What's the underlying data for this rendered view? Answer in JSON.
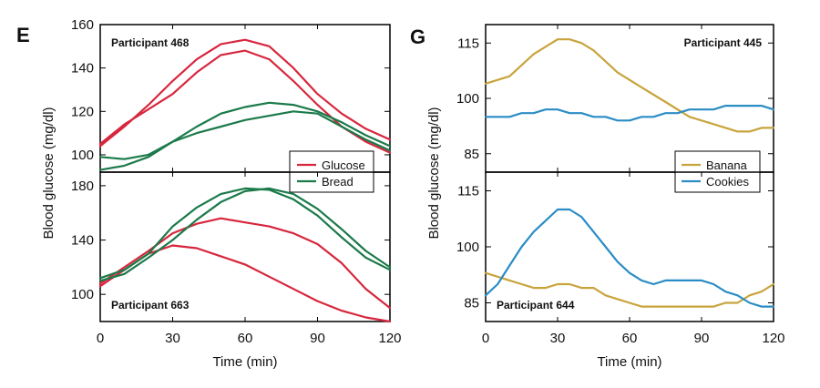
{
  "colors": {
    "glucose": "#d7263d",
    "bread": "#1b7a4a",
    "banana": "#c8a43c",
    "cookies": "#2a8dc5",
    "frame": "#000000"
  },
  "chart_data": [
    {
      "panel": "E",
      "type": "line",
      "xlabel": "Time (min)",
      "ylabel": "Blood glucose (mg/dl)",
      "xlim": [
        0,
        120
      ],
      "xticks": [
        "0",
        "30",
        "60",
        "90",
        "120"
      ],
      "legend": [
        {
          "label": "Glucose",
          "color_key": "glucose"
        },
        {
          "label": "Bread",
          "color_key": "bread"
        }
      ],
      "legend_position": "bottom-right of top subplot",
      "subplots": [
        {
          "participant": "Participant 468",
          "label_position": "top-left",
          "ylim": [
            92,
            160
          ],
          "yticks": [
            100,
            120,
            140,
            160
          ],
          "series": [
            {
              "food": "Glucose",
              "color_key": "glucose",
              "x": [
                0,
                10,
                20,
                30,
                40,
                50,
                60,
                70,
                80,
                90,
                100,
                110,
                120
              ],
              "y": [
                104,
                113,
                123,
                134,
                144,
                151,
                153,
                150,
                140,
                128,
                119,
                112,
                107
              ]
            },
            {
              "food": "Glucose",
              "color_key": "glucose",
              "x": [
                0,
                10,
                20,
                30,
                40,
                50,
                60,
                70,
                80,
                90,
                100,
                110,
                120
              ],
              "y": [
                105,
                114,
                121,
                128,
                138,
                146,
                148,
                144,
                134,
                123,
                113,
                106,
                101
              ]
            },
            {
              "food": "Bread",
              "color_key": "bread",
              "x": [
                0,
                10,
                20,
                30,
                40,
                50,
                60,
                70,
                80,
                90,
                100,
                110,
                120
              ],
              "y": [
                99,
                98,
                100,
                106,
                113,
                119,
                122,
                124,
                123,
                120,
                115,
                109,
                104
              ]
            },
            {
              "food": "Bread",
              "color_key": "bread",
              "x": [
                0,
                10,
                20,
                30,
                40,
                50,
                60,
                70,
                80,
                90,
                100,
                110,
                120
              ],
              "y": [
                93,
                95,
                99,
                106,
                110,
                113,
                116,
                118,
                120,
                119,
                113,
                107,
                102
              ]
            }
          ]
        },
        {
          "participant": "Participant 663",
          "label_position": "bottom-left",
          "ylim": [
            80,
            190
          ],
          "yticks": [
            100,
            140,
            180
          ],
          "series": [
            {
              "food": "Glucose",
              "color_key": "glucose",
              "x": [
                0,
                10,
                20,
                30,
                40,
                50,
                60,
                70,
                80,
                90,
                100,
                110,
                120
              ],
              "y": [
                108,
                120,
                132,
                145,
                152,
                156,
                153,
                150,
                145,
                137,
                123,
                104,
                90
              ]
            },
            {
              "food": "Glucose",
              "color_key": "glucose",
              "x": [
                0,
                10,
                20,
                30,
                40,
                50,
                60,
                70,
                80,
                90,
                100,
                110,
                120
              ],
              "y": [
                106,
                118,
                130,
                136,
                134,
                128,
                122,
                113,
                104,
                95,
                88,
                83,
                80
              ]
            },
            {
              "food": "Bread",
              "color_key": "bread",
              "x": [
                0,
                10,
                20,
                30,
                40,
                50,
                60,
                70,
                80,
                90,
                100,
                110,
                120
              ],
              "y": [
                112,
                118,
                130,
                150,
                164,
                174,
                178,
                177,
                170,
                158,
                142,
                127,
                118
              ]
            },
            {
              "food": "Bread",
              "color_key": "bread",
              "x": [
                0,
                10,
                20,
                30,
                40,
                50,
                60,
                70,
                80,
                90,
                100,
                110,
                120
              ],
              "y": [
                110,
                115,
                127,
                140,
                155,
                168,
                176,
                178,
                174,
                163,
                148,
                132,
                120
              ]
            }
          ]
        }
      ]
    },
    {
      "panel": "G",
      "type": "line",
      "xlabel": "Time (min)",
      "ylabel": "Blood glucose (mg/dl)",
      "xlim": [
        0,
        120
      ],
      "xticks": [
        "0",
        "30",
        "60",
        "90",
        "120"
      ],
      "legend": [
        {
          "label": "Banana",
          "color_key": "banana"
        },
        {
          "label": "Cookies",
          "color_key": "cookies"
        }
      ],
      "legend_position": "bottom-right of top subplot",
      "subplots": [
        {
          "participant": "Participant 445",
          "label_position": "top-right",
          "ylim": [
            80,
            120
          ],
          "yticks": [
            85,
            100,
            115
          ],
          "series": [
            {
              "food": "Banana",
              "color_key": "banana",
              "x": [
                0,
                10,
                20,
                30,
                35,
                40,
                45,
                55,
                65,
                75,
                85,
                95,
                105,
                110,
                115,
                120
              ],
              "y": [
                104,
                106,
                112,
                116,
                116,
                115,
                113,
                107,
                103,
                99,
                95,
                93,
                91,
                91,
                92,
                92
              ]
            },
            {
              "food": "Cookies",
              "color_key": "cookies",
              "x": [
                0,
                5,
                10,
                15,
                20,
                25,
                30,
                35,
                40,
                45,
                50,
                55,
                60,
                65,
                70,
                75,
                80,
                85,
                90,
                95,
                100,
                105,
                110,
                115,
                120
              ],
              "y": [
                95,
                95,
                95,
                96,
                96,
                97,
                97,
                96,
                96,
                95,
                95,
                94,
                94,
                95,
                95,
                96,
                96,
                97,
                97,
                97,
                98,
                98,
                98,
                98,
                97
              ]
            }
          ]
        },
        {
          "participant": "Participant 644",
          "label_position": "bottom-left",
          "ylim": [
            80,
            120
          ],
          "yticks": [
            85,
            100,
            115
          ],
          "series": [
            {
              "food": "Banana",
              "color_key": "banana",
              "x": [
                0,
                5,
                10,
                15,
                20,
                25,
                30,
                35,
                40,
                45,
                50,
                55,
                60,
                65,
                70,
                75,
                80,
                85,
                90,
                95,
                100,
                105,
                110,
                115,
                120
              ],
              "y": [
                93,
                92,
                91,
                90,
                89,
                89,
                90,
                90,
                89,
                89,
                87,
                86,
                85,
                84,
                84,
                84,
                84,
                84,
                84,
                84,
                85,
                85,
                87,
                88,
                90
              ]
            },
            {
              "food": "Cookies",
              "color_key": "cookies",
              "x": [
                0,
                5,
                10,
                15,
                20,
                25,
                30,
                35,
                40,
                45,
                50,
                55,
                60,
                65,
                70,
                75,
                80,
                85,
                90,
                95,
                100,
                105,
                110,
                115,
                120
              ],
              "y": [
                87,
                90,
                95,
                100,
                104,
                107,
                110,
                110,
                108,
                104,
                100,
                96,
                93,
                91,
                90,
                91,
                91,
                91,
                91,
                90,
                88,
                87,
                85,
                84,
                84
              ]
            }
          ]
        }
      ]
    }
  ]
}
